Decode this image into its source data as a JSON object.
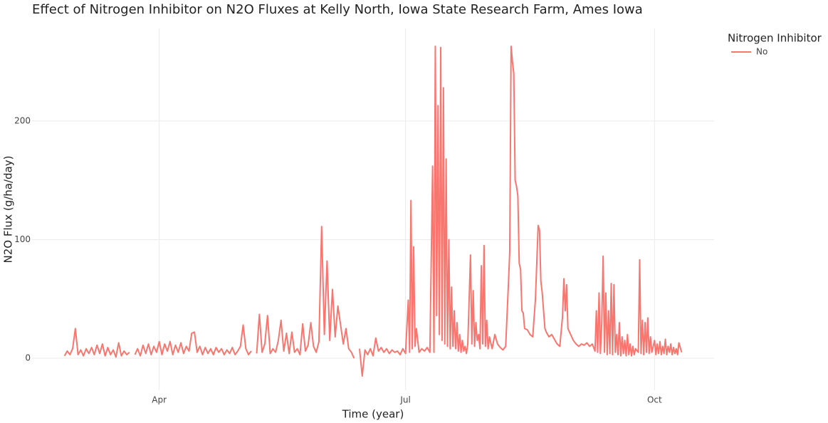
{
  "chart_data": {
    "type": "line",
    "title": "Effect of Nitrogen Inhibitor on N2O Fluxes at Kelly North, Iowa State Research Farm, Ames Iowa",
    "x_label": "Time (year)",
    "y_label": "N2O Flux (g/ha/day)",
    "legend_title": "Nitrogen Inhibitor",
    "grid": true,
    "xlim": [
      44,
      296
    ],
    "ylim": [
      -27,
      278
    ],
    "xticks": [
      {
        "value": 91,
        "label": "Apr"
      },
      {
        "value": 182,
        "label": "Jul"
      },
      {
        "value": 274,
        "label": "Oct"
      }
    ],
    "yticks": [
      0,
      100,
      200
    ],
    "x": [
      56,
      57,
      58,
      59,
      60,
      61,
      62,
      63,
      64,
      65,
      66,
      67,
      68,
      69,
      70,
      71,
      72,
      73,
      74,
      75,
      76,
      77,
      78,
      79,
      80,
      81,
      82,
      83,
      84,
      85,
      86,
      87,
      88,
      89,
      90,
      91,
      92,
      93,
      94,
      95,
      96,
      97,
      98,
      99,
      100,
      101,
      102,
      103,
      104,
      105,
      106,
      107,
      108,
      109,
      110,
      111,
      112,
      113,
      114,
      115,
      116,
      117,
      118,
      119,
      120,
      121,
      122,
      123,
      124,
      125,
      126,
      127,
      128,
      129,
      130,
      131,
      132,
      133,
      134,
      135,
      136,
      137,
      138,
      139,
      140,
      141,
      142,
      143,
      144,
      145,
      146,
      147,
      148,
      149,
      150,
      151,
      152,
      153,
      154,
      155,
      156,
      157,
      158,
      159,
      160,
      161,
      162,
      163,
      164,
      165,
      166,
      167,
      168,
      169,
      170,
      171,
      172,
      173,
      174,
      175,
      176,
      177,
      178,
      179,
      180,
      181,
      182,
      183,
      183.5,
      184,
      184.5,
      185,
      185.5,
      186,
      187,
      188,
      189,
      190,
      191,
      192,
      192.5,
      193,
      193.5,
      194,
      194.5,
      195,
      195.5,
      196,
      196.5,
      197,
      197.5,
      198,
      198.5,
      199,
      199.5,
      200,
      200.5,
      201,
      201.5,
      202,
      202.5,
      203,
      203.5,
      204,
      204.5,
      205,
      206,
      206.5,
      207,
      207.5,
      208,
      208.5,
      209,
      209.5,
      210,
      210.5,
      211,
      211.5,
      212,
      212.5,
      213,
      214,
      215,
      216,
      217,
      218,
      219,
      220,
      220.5,
      221,
      221.5,
      222,
      222.5,
      223,
      223.5,
      224,
      224.5,
      225,
      225.5,
      226,
      227,
      228,
      229,
      230,
      231,
      231.5,
      232,
      232.5,
      233,
      233.5,
      234,
      235,
      236,
      237,
      238,
      239,
      240,
      240.5,
      241,
      241.5,
      242,
      243,
      244,
      245,
      246,
      247,
      248,
      249,
      250,
      251,
      252,
      252.5,
      253,
      253.5,
      254,
      254.5,
      255,
      255.5,
      256,
      256.5,
      257,
      257.5,
      258,
      258.5,
      259,
      259.5,
      260,
      260.5,
      261,
      261.5,
      262,
      262.5,
      263,
      263.5,
      264,
      264.5,
      265,
      265.5,
      266,
      266.5,
      267,
      268,
      268.5,
      269,
      269.5,
      270,
      270.5,
      271,
      271.5,
      272,
      272.5,
      273,
      274,
      274.5,
      275,
      275.5,
      276,
      276.5,
      277,
      277.5,
      278,
      278.5,
      279,
      279.5,
      280,
      280.5,
      281,
      281.5,
      282,
      282.5,
      283,
      284
    ],
    "series": [
      {
        "name": "No",
        "color": "#F8766D",
        "values": [
          2,
          6,
          3,
          8,
          25,
          3,
          7,
          2,
          8,
          4,
          9,
          3,
          11,
          4,
          12,
          2,
          9,
          3,
          7,
          1,
          13,
          2,
          6,
          3,
          5,
          null,
          3,
          8,
          2,
          11,
          4,
          12,
          3,
          10,
          5,
          14,
          3,
          12,
          6,
          14,
          3,
          11,
          5,
          13,
          4,
          10,
          6,
          21,
          22,
          5,
          10,
          3,
          9,
          4,
          8,
          3,
          9,
          5,
          8,
          3,
          7,
          4,
          9,
          3,
          6,
          10,
          28,
          8,
          3,
          6,
          null,
          4,
          37,
          5,
          12,
          36,
          4,
          8,
          5,
          15,
          32,
          6,
          21,
          4,
          22,
          5,
          8,
          3,
          29,
          6,
          11,
          30,
          10,
          5,
          14,
          111,
          20,
          82,
          15,
          58,
          18,
          44,
          28,
          12,
          25,
          8,
          5,
          0,
          null,
          8,
          -15,
          7,
          3,
          8,
          2,
          17,
          6,
          9,
          5,
          8,
          4,
          7,
          5,
          6,
          3,
          8,
          4,
          49,
          5,
          133,
          8,
          94,
          10,
          25,
          5,
          8,
          6,
          9,
          5,
          162,
          5,
          263,
          36,
          213,
          20,
          262,
          15,
          228,
          12,
          168,
          10,
          100,
          8,
          60,
          10,
          40,
          8,
          30,
          6,
          20,
          5,
          15,
          6,
          10,
          4,
          12,
          87,
          12,
          57,
          10,
          30,
          15,
          20,
          8,
          78,
          12,
          95,
          10,
          32,
          8,
          18,
          8,
          20,
          12,
          9,
          7,
          10,
          62,
          90,
          263,
          250,
          240,
          150,
          145,
          137,
          80,
          75,
          40,
          38,
          25,
          24,
          20,
          18,
          50,
          112,
          108,
          65,
          55,
          40,
          25,
          22,
          18,
          20,
          16,
          12,
          10,
          35,
          67,
          40,
          62,
          25,
          20,
          15,
          12,
          10,
          12,
          11,
          13,
          10,
          12,
          6,
          40,
          5,
          55,
          4,
          30,
          86,
          5,
          55,
          3,
          40,
          4,
          63,
          3,
          62,
          5,
          20,
          3,
          30,
          2,
          18,
          4,
          15,
          2,
          20,
          3,
          12,
          2,
          10,
          3,
          8,
          5,
          83,
          4,
          32,
          3,
          30,
          5,
          34,
          4,
          18,
          5,
          15,
          3,
          12,
          4,
          14,
          3,
          10,
          4,
          16,
          3,
          10,
          5,
          12,
          3,
          9,
          4,
          8,
          3,
          13,
          5
        ]
      }
    ]
  }
}
